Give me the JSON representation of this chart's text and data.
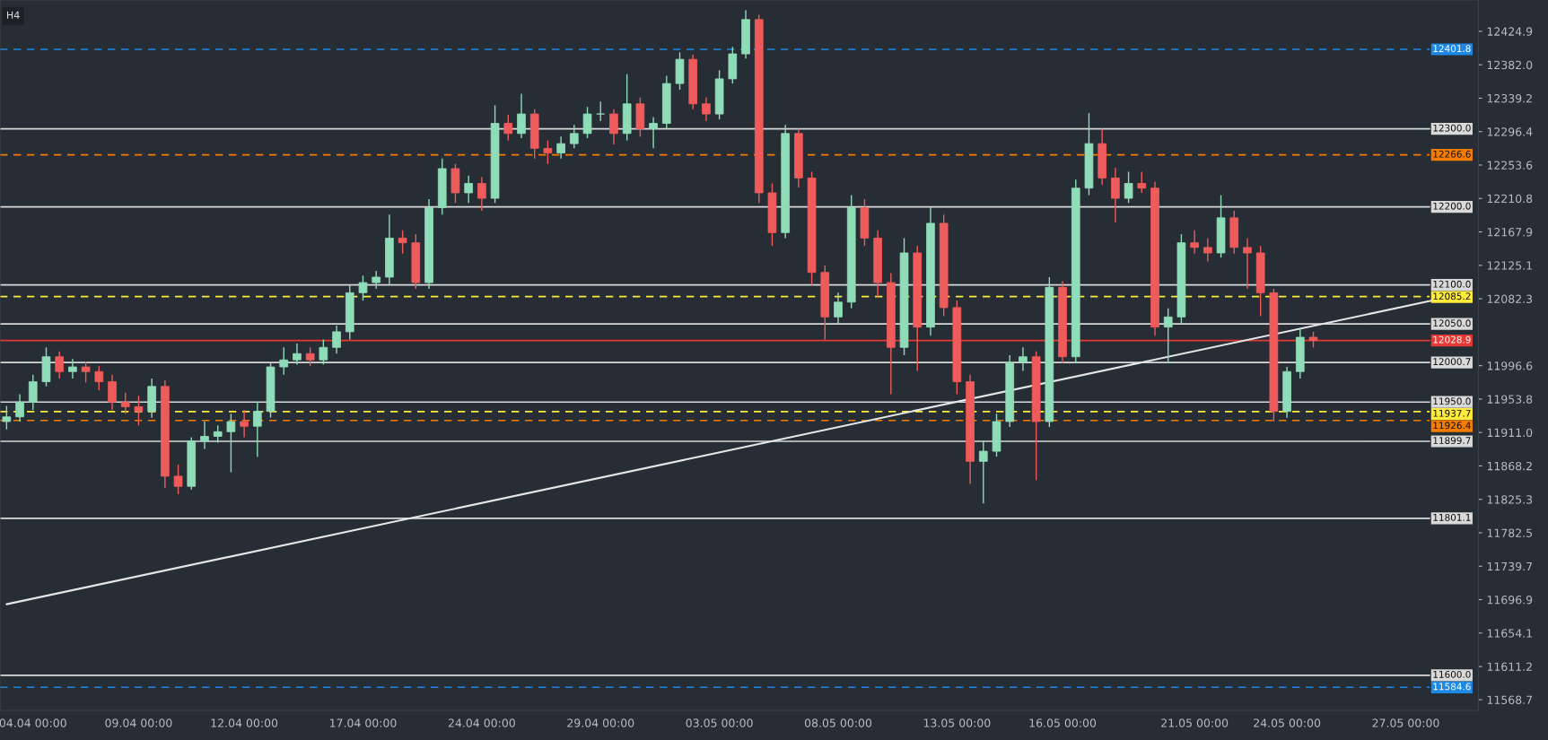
{
  "chart_data": {
    "type": "candlestick",
    "annotations": [
      "H4"
    ],
    "categories": [
      null,
      null,
      "04.04 00:00",
      null,
      null,
      null,
      null,
      null,
      null,
      null,
      "09.04 00:00",
      null,
      null,
      null,
      null,
      null,
      null,
      null,
      "12.04 00:00",
      null,
      null,
      null,
      null,
      null,
      null,
      null,
      null,
      "17.04 00:00",
      null,
      null,
      null,
      null,
      null,
      null,
      null,
      null,
      "24.04 00:00",
      null,
      null,
      null,
      null,
      null,
      null,
      null,
      null,
      "29.04 00:00",
      null,
      null,
      null,
      null,
      null,
      null,
      null,
      null,
      "03.05 00:00",
      null,
      null,
      null,
      null,
      null,
      null,
      null,
      null,
      "08.05 00:00",
      null,
      null,
      null,
      null,
      null,
      null,
      null,
      null,
      "13.05 00:00",
      null,
      null,
      null,
      null,
      null,
      null,
      null,
      "16.05 00:00",
      null,
      null,
      null,
      null,
      null,
      null,
      null,
      null,
      null,
      "21.05 00:00",
      null,
      null,
      null,
      null,
      null,
      null,
      "24.05 00:00",
      null,
      null,
      null,
      null,
      null,
      null,
      null,
      null,
      "27.05 00:00",
      null,
      null,
      null,
      null,
      null
    ],
    "ohlc": [
      [
        11925,
        11945,
        11915,
        11931
      ],
      [
        11931,
        11960,
        11925,
        11950
      ],
      [
        11950,
        11985,
        11940,
        11976
      ],
      [
        11976,
        12020,
        11970,
        12008
      ],
      [
        12008,
        12015,
        11980,
        11989
      ],
      [
        11989,
        12005,
        11980,
        11995
      ],
      [
        11995,
        12002,
        11975,
        11989
      ],
      [
        11989,
        11996,
        11965,
        11976
      ],
      [
        11976,
        11985,
        11940,
        11950
      ],
      [
        11950,
        11962,
        11935,
        11944
      ],
      [
        11944,
        11958,
        11920,
        11938
      ],
      [
        11938,
        11980,
        11930,
        11970
      ],
      [
        11970,
        11978,
        11840,
        11855
      ],
      [
        11855,
        11870,
        11832,
        11842
      ],
      [
        11842,
        11905,
        11838,
        11900
      ],
      [
        11900,
        11925,
        11890,
        11906
      ],
      [
        11906,
        11920,
        11898,
        11912
      ],
      [
        11912,
        11935,
        11860,
        11925
      ],
      [
        11925,
        11940,
        11905,
        11919
      ],
      [
        11919,
        11950,
        11880,
        11938
      ],
      [
        11938,
        12000,
        11930,
        11995
      ],
      [
        11995,
        12020,
        11985,
        12004
      ],
      [
        12004,
        12025,
        11998,
        12012
      ],
      [
        12012,
        12020,
        11996,
        12004
      ],
      [
        12004,
        12030,
        11998,
        12020
      ],
      [
        12020,
        12048,
        12012,
        12040
      ],
      [
        12040,
        12100,
        12030,
        12090
      ],
      [
        12090,
        12112,
        12080,
        12103
      ],
      [
        12103,
        12118,
        12095,
        12110
      ],
      [
        12110,
        12190,
        12100,
        12160
      ],
      [
        12160,
        12170,
        12140,
        12154
      ],
      [
        12154,
        12165,
        12095,
        12103
      ],
      [
        12103,
        12210,
        12095,
        12199
      ],
      [
        12199,
        12262,
        12190,
        12249
      ],
      [
        12249,
        12255,
        12205,
        12218
      ],
      [
        12218,
        12240,
        12205,
        12230
      ],
      [
        12230,
        12238,
        12195,
        12211
      ],
      [
        12211,
        12330,
        12205,
        12307
      ],
      [
        12307,
        12318,
        12285,
        12294
      ],
      [
        12294,
        12345,
        12288,
        12319
      ],
      [
        12319,
        12325,
        12262,
        12275
      ],
      [
        12275,
        12285,
        12255,
        12269
      ],
      [
        12269,
        12290,
        12262,
        12281
      ],
      [
        12281,
        12305,
        12275,
        12294
      ],
      [
        12294,
        12328,
        12288,
        12319
      ],
      [
        12319,
        12335,
        12310,
        12319
      ],
      [
        12319,
        12325,
        12280,
        12294
      ],
      [
        12294,
        12370,
        12285,
        12332
      ],
      [
        12332,
        12340,
        12290,
        12300
      ],
      [
        12300,
        12315,
        12275,
        12307
      ],
      [
        12307,
        12368,
        12300,
        12358
      ],
      [
        12358,
        12398,
        12350,
        12389
      ],
      [
        12389,
        12395,
        12325,
        12332
      ],
      [
        12332,
        12340,
        12310,
        12319
      ],
      [
        12319,
        12375,
        12312,
        12364
      ],
      [
        12364,
        12405,
        12358,
        12396
      ],
      [
        12396,
        12452,
        12390,
        12440
      ],
      [
        12440,
        12446,
        12205,
        12218
      ],
      [
        12218,
        12230,
        12150,
        12167
      ],
      [
        12167,
        12305,
        12160,
        12294
      ],
      [
        12294,
        12300,
        12225,
        12237
      ],
      [
        12237,
        12245,
        12100,
        12116
      ],
      [
        12116,
        12125,
        12030,
        12059
      ],
      [
        12059,
        12090,
        12050,
        12078
      ],
      [
        12078,
        12215,
        12070,
        12199
      ],
      [
        12199,
        12210,
        12150,
        12160
      ],
      [
        12160,
        12170,
        12085,
        12103
      ],
      [
        12103,
        12115,
        11960,
        12020
      ],
      [
        12020,
        12160,
        12010,
        12141
      ],
      [
        12141,
        12150,
        11990,
        12046
      ],
      [
        12046,
        12200,
        12035,
        12179
      ],
      [
        12179,
        12190,
        12060,
        12071
      ],
      [
        12071,
        12080,
        11960,
        11976
      ],
      [
        11976,
        11985,
        11845,
        11874
      ],
      [
        11874,
        11900,
        11820,
        11887
      ],
      [
        11887,
        11935,
        11880,
        11925
      ],
      [
        11925,
        12010,
        11918,
        12001
      ],
      [
        12001,
        12020,
        11990,
        12008
      ],
      [
        12008,
        12015,
        11850,
        11925
      ],
      [
        11925,
        12110,
        11918,
        12097
      ],
      [
        12097,
        12105,
        12000,
        12008
      ],
      [
        12008,
        12235,
        12000,
        12224
      ],
      [
        12224,
        12320,
        12215,
        12281
      ],
      [
        12281,
        12300,
        12228,
        12237
      ],
      [
        12237,
        12250,
        12180,
        12211
      ],
      [
        12211,
        12245,
        12205,
        12230
      ],
      [
        12230,
        12245,
        12218,
        12224
      ],
      [
        12224,
        12232,
        12035,
        12046
      ],
      [
        12046,
        12070,
        12000,
        12059
      ],
      [
        12059,
        12165,
        12050,
        12154
      ],
      [
        12154,
        12170,
        12140,
        12148
      ],
      [
        12148,
        12160,
        12130,
        12141
      ],
      [
        12141,
        12215,
        12135,
        12186
      ],
      [
        12186,
        12195,
        12140,
        12148
      ],
      [
        12148,
        12160,
        12095,
        12141
      ],
      [
        12141,
        12150,
        12060,
        12090
      ],
      [
        12090,
        12095,
        11925,
        11938
      ],
      [
        11938,
        11995,
        11930,
        11989
      ],
      [
        11989,
        12045,
        11980,
        12033
      ],
      [
        12033,
        12040,
        12020,
        12029
      ],
      null,
      null,
      null,
      null,
      null,
      null,
      null,
      null,
      null,
      null,
      null,
      null
    ],
    "series": [
      {
        "type": "line",
        "color": "#e6e6e6",
        "values": [
          11691,
          null,
          null,
          null,
          null,
          null,
          null,
          null,
          null,
          null,
          null,
          null,
          null,
          null,
          null,
          null,
          null,
          null,
          null,
          null,
          null,
          null,
          null,
          null,
          null,
          null,
          null,
          null,
          null,
          null,
          null,
          null,
          null,
          null,
          null,
          null,
          null,
          null,
          null,
          null,
          null,
          null,
          null,
          null,
          null,
          null,
          null,
          null,
          null,
          null,
          null,
          null,
          null,
          null,
          null,
          null,
          null,
          null,
          null,
          null,
          null,
          null,
          null,
          null,
          null,
          null,
          null,
          null,
          null,
          null,
          null,
          null,
          null,
          null,
          null,
          null,
          null,
          null,
          null,
          null,
          null,
          null,
          null,
          null,
          null,
          null,
          null,
          null,
          null,
          null,
          null,
          null,
          null,
          null,
          null,
          null,
          null,
          null,
          null,
          null,
          null,
          null,
          null,
          null,
          null,
          null,
          null,
          null,
          12080,
          null,
          null,
          null
        ]
      }
    ],
    "ref_lines": [
      {
        "axis": "y",
        "value": 12401.8,
        "label": "12401.8",
        "color": "#1e88e5",
        "line_style": "dashed"
      },
      {
        "axis": "y",
        "value": 12300.0,
        "label": "12300.0",
        "color": "#d9d9d9",
        "line_style": "solid"
      },
      {
        "axis": "y",
        "value": 12266.6,
        "label": "12266.6",
        "color": "#f57c00",
        "line_style": "dashed"
      },
      {
        "axis": "y",
        "value": 12200.0,
        "label": "12200.0",
        "color": "#d9d9d9",
        "line_style": "solid"
      },
      {
        "axis": "y",
        "value": 12100.0,
        "label": "12100.0",
        "color": "#d9d9d9",
        "line_style": "solid"
      },
      {
        "axis": "y",
        "value": 12085.2,
        "label": "12085.2",
        "color": "#ffeb3b",
        "line_style": "dashed"
      },
      {
        "axis": "y",
        "value": 12050.0,
        "label": "12050.0",
        "color": "#d9d9d9",
        "line_style": "solid"
      },
      {
        "axis": "y",
        "value": 12028.9,
        "label": "12028.9",
        "color": "#e53935",
        "line_style": "solid"
      },
      {
        "axis": "y",
        "value": 12000.7,
        "label": "12000.7",
        "color": "#d9d9d9",
        "line_style": "solid"
      },
      {
        "axis": "y",
        "value": 11950.0,
        "label": "11950.0",
        "color": "#d9d9d9",
        "line_style": "solid"
      },
      {
        "axis": "y",
        "value": 11937.7,
        "label": "11937.7",
        "color": "#ffeb3b",
        "line_style": "dashed"
      },
      {
        "axis": "y",
        "value": 11926.4,
        "label": "11926.4",
        "color": "#f57c00",
        "line_style": "dashed"
      },
      {
        "axis": "y",
        "value": 11899.7,
        "label": "11899.7",
        "color": "#d9d9d9",
        "line_style": "solid"
      },
      {
        "axis": "y",
        "value": 11801.1,
        "label": "11801.1",
        "color": "#d9d9d9",
        "line_style": "solid"
      },
      {
        "axis": "y",
        "value": 11600.0,
        "label": "11600.0",
        "color": "#d9d9d9",
        "line_style": "solid"
      },
      {
        "axis": "y",
        "value": 11584.6,
        "label": "11584.6",
        "color": "#1e88e5",
        "line_style": "dashed"
      }
    ],
    "ylim": [
      11555,
      12465
    ],
    "yticks": [
      12424.9,
      {
        "value": 12382.0,
        "label": "12382.0"
      },
      12339.2,
      12296.4,
      12253.6,
      12210.8,
      12167.9,
      12125.1,
      12082.3,
      11996.6,
      11953.8,
      {
        "value": 11911.0,
        "label": "11911.0"
      },
      11868.2,
      11825.3,
      11782.5,
      11739.7,
      11696.9,
      11654.1,
      11611.2,
      11568.7
    ],
    "grid": false
  }
}
